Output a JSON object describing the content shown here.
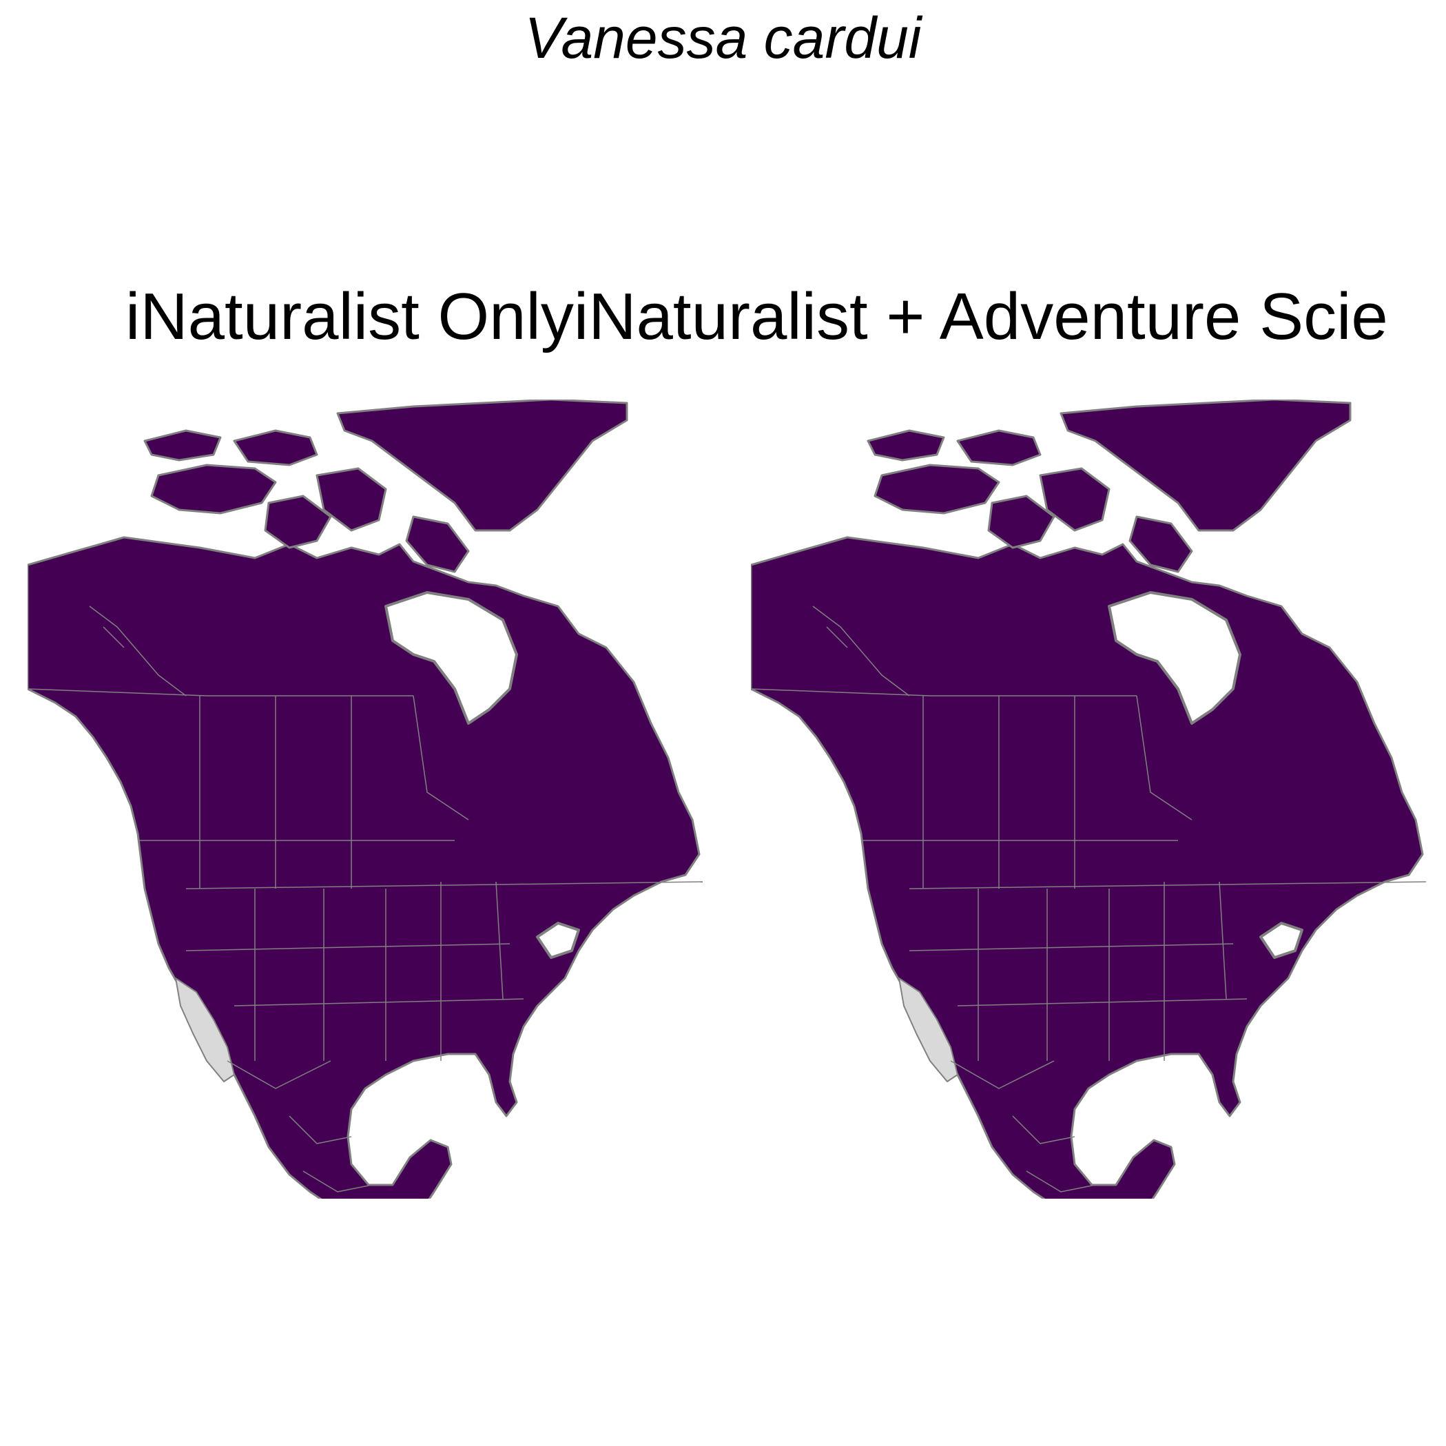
{
  "figure": {
    "title": "Vanessa cardui",
    "panels": [
      {
        "subtitle": "iNaturalist Only"
      },
      {
        "subtitle": "iNaturalist + Adventure Scie"
      }
    ]
  },
  "colors": {
    "predicted_presence": "#440154",
    "ocean": "#ffffff",
    "absence_land": "#d9d9d9",
    "border": "#808080"
  }
}
